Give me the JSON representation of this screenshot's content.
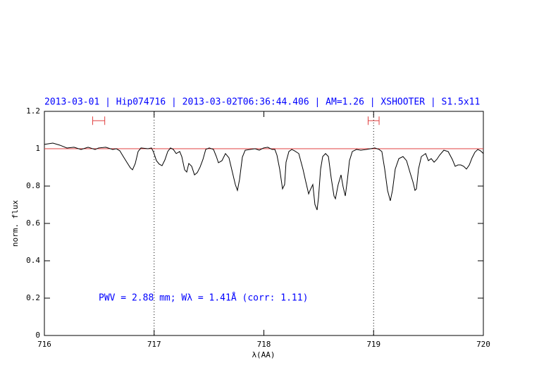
{
  "chart_data": {
    "type": "line",
    "title": "2013-03-01 | Hip074716 | 2013-03-02T06:36:44.406 | AM=1.26 | XSHOOTER | S1.5x11",
    "annotation": "PWV = 2.88 mm; Wλ = 1.41Å (corr: 1.11)",
    "xlabel": "λ(AA)",
    "ylabel": "norm. flux",
    "xlim": [
      716,
      720
    ],
    "ylim": [
      0,
      1.2
    ],
    "xticks": [
      716,
      717,
      718,
      719,
      720
    ],
    "yticks": [
      0,
      0.2,
      0.4,
      0.6,
      0.8,
      1,
      1.2
    ],
    "vlines": [
      717,
      719
    ],
    "reference": 1,
    "reference_color": "#e04040",
    "intervals": [
      [
        716.44,
        716.55
      ],
      [
        718.95,
        719.05
      ]
    ],
    "interval_y": 1.15,
    "interval_color": "#e04040",
    "series": [
      {
        "color": "#000000",
        "x": [
          716.0,
          716.077,
          716.141,
          716.205,
          716.27,
          716.334,
          716.398,
          716.462,
          716.494,
          716.559,
          716.623,
          716.655,
          716.687,
          716.719,
          716.751,
          716.783,
          716.803,
          716.828,
          716.854,
          716.88,
          716.944,
          716.976,
          716.995,
          717.021,
          717.047,
          717.072,
          717.098,
          717.124,
          717.149,
          717.175,
          717.201,
          717.233,
          717.252,
          717.278,
          717.297,
          717.316,
          717.342,
          717.368,
          717.393,
          717.419,
          717.445,
          717.47,
          717.502,
          717.541,
          717.567,
          717.586,
          717.618,
          717.65,
          717.682,
          717.714,
          717.74,
          717.759,
          717.778,
          717.804,
          717.83,
          717.875,
          717.92,
          717.958,
          717.997,
          718.035,
          718.074,
          718.1,
          718.119,
          718.144,
          718.17,
          718.189,
          718.202,
          718.228,
          718.254,
          718.279,
          718.318,
          718.356,
          718.382,
          718.408,
          718.421,
          718.446,
          718.465,
          718.485,
          718.498,
          718.517,
          718.536,
          718.562,
          718.588,
          718.613,
          718.639,
          718.652,
          718.677,
          718.703,
          718.722,
          718.742,
          718.761,
          718.78,
          718.806,
          718.844,
          718.883,
          718.934,
          718.973,
          719.011,
          719.05,
          719.075,
          719.101,
          719.127,
          719.152,
          719.172,
          719.197,
          719.23,
          719.268,
          719.3,
          719.332,
          719.358,
          719.377,
          719.39,
          719.409,
          719.435,
          719.474,
          719.499,
          719.525,
          719.551,
          719.576,
          719.602,
          719.64,
          719.679,
          719.717,
          719.743,
          719.769,
          719.794,
          719.82,
          719.846,
          719.872,
          719.897,
          719.923,
          719.949,
          719.974,
          720.0
        ],
        "values": [
          1.023,
          1.03,
          1.019,
          1.004,
          1.008,
          0.996,
          1.008,
          0.996,
          1.004,
          1.008,
          0.996,
          1.0,
          0.989,
          0.958,
          0.928,
          0.898,
          0.887,
          0.921,
          0.985,
          1.004,
          1.0,
          1.004,
          0.981,
          0.936,
          0.917,
          0.909,
          0.94,
          0.985,
          1.004,
          0.996,
          0.974,
          0.985,
          0.958,
          0.887,
          0.875,
          0.921,
          0.906,
          0.86,
          0.872,
          0.902,
          0.943,
          0.996,
          1.004,
          0.996,
          0.958,
          0.925,
          0.936,
          0.974,
          0.951,
          0.872,
          0.808,
          0.777,
          0.834,
          0.955,
          0.992,
          0.996,
          1.0,
          0.992,
          1.004,
          1.008,
          0.996,
          0.996,
          0.966,
          0.891,
          0.785,
          0.808,
          0.928,
          0.985,
          0.996,
          0.989,
          0.974,
          0.891,
          0.823,
          0.758,
          0.777,
          0.808,
          0.702,
          0.672,
          0.74,
          0.891,
          0.958,
          0.974,
          0.958,
          0.845,
          0.747,
          0.732,
          0.808,
          0.86,
          0.796,
          0.747,
          0.834,
          0.936,
          0.985,
          0.996,
          0.992,
          0.996,
          1.0,
          1.004,
          0.996,
          0.985,
          0.891,
          0.777,
          0.721,
          0.777,
          0.891,
          0.947,
          0.958,
          0.936,
          0.872,
          0.823,
          0.777,
          0.785,
          0.891,
          0.958,
          0.974,
          0.936,
          0.947,
          0.928,
          0.943,
          0.966,
          0.992,
          0.985,
          0.943,
          0.906,
          0.913,
          0.913,
          0.906,
          0.891,
          0.913,
          0.951,
          0.981,
          0.996,
          0.989,
          0.974
        ]
      }
    ]
  }
}
